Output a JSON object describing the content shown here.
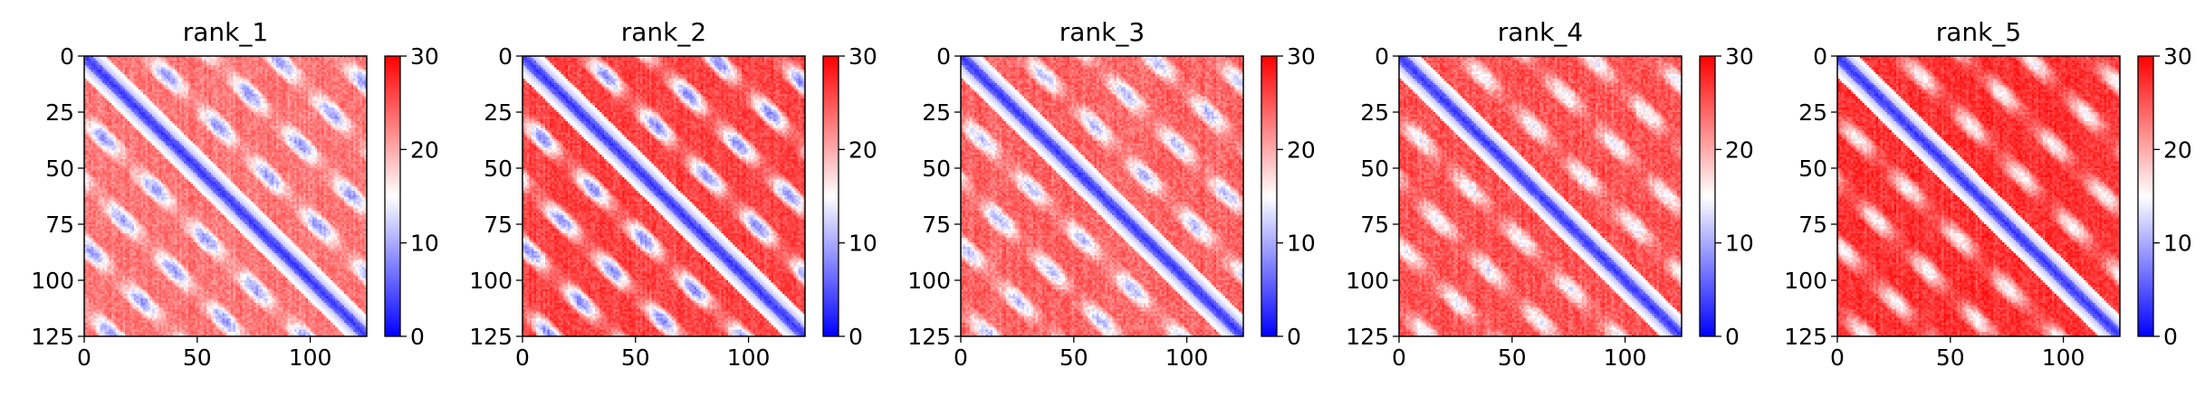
{
  "chart_data": {
    "type": "heatmap",
    "panels": [
      {
        "title": "rank_1",
        "offdiag_period": 28,
        "diag_value": 2,
        "band_low": 9,
        "band_high": 23,
        "noise": 3.5
      },
      {
        "title": "rank_2",
        "offdiag_period": 28,
        "diag_value": 2,
        "band_low": 8,
        "band_high": 26,
        "noise": 3.5
      },
      {
        "title": "rank_3",
        "offdiag_period": 28,
        "diag_value": 2,
        "band_low": 11,
        "band_high": 24,
        "noise": 4.0
      },
      {
        "title": "rank_4",
        "offdiag_period": 28,
        "diag_value": 2,
        "band_low": 14,
        "band_high": 25,
        "noise": 4.0
      },
      {
        "title": "rank_5",
        "offdiag_period": 28,
        "diag_value": 2,
        "band_low": 15,
        "band_high": 27,
        "noise": 3.5
      }
    ],
    "matrix_size": 125,
    "x_ticks": [
      0,
      50,
      100
    ],
    "y_ticks": [
      0,
      25,
      50,
      75,
      100,
      125
    ],
    "xlim": [
      0,
      125
    ],
    "ylim": [
      125,
      0
    ],
    "colorbar": {
      "range": [
        0,
        30
      ],
      "ticks": [
        0,
        10,
        20,
        30
      ],
      "colormap": "bwr",
      "colors": {
        "low": "#0000ff",
        "mid": "#ffffff",
        "high": "#ff0000"
      }
    }
  }
}
